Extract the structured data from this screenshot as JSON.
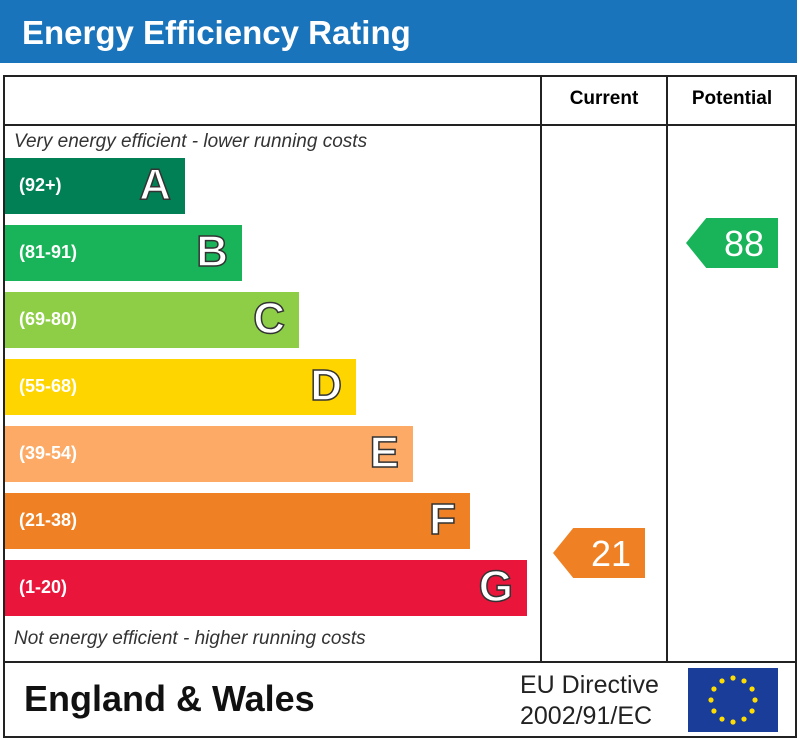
{
  "chart_data": {
    "type": "bar",
    "title": "Energy Efficiency Rating",
    "columns": [
      "Current",
      "Potential"
    ],
    "top_note": "Very energy efficient - lower running costs",
    "bottom_note": "Not energy efficient - higher running costs",
    "bands": [
      {
        "letter": "A",
        "range": "(92+)",
        "color": "#008054"
      },
      {
        "letter": "B",
        "range": "(81-91)",
        "color": "#19b459"
      },
      {
        "letter": "C",
        "range": "(69-80)",
        "color": "#8dce46"
      },
      {
        "letter": "D",
        "range": "(55-68)",
        "color": "#ffd500"
      },
      {
        "letter": "E",
        "range": "(39-54)",
        "color": "#fcaa65"
      },
      {
        "letter": "F",
        "range": "(21-38)",
        "color": "#ef8023"
      },
      {
        "letter": "G",
        "range": "(1-20)",
        "color": "#e9153b"
      }
    ],
    "current": {
      "value": "21",
      "band": "F",
      "color": "#ef8023"
    },
    "potential": {
      "value": "88",
      "band": "B",
      "color": "#19b459"
    }
  },
  "footer": {
    "region": "England & Wales",
    "directive_line1": "EU Directive",
    "directive_line2": "2002/91/EC"
  },
  "title_color": "#1a74bb"
}
